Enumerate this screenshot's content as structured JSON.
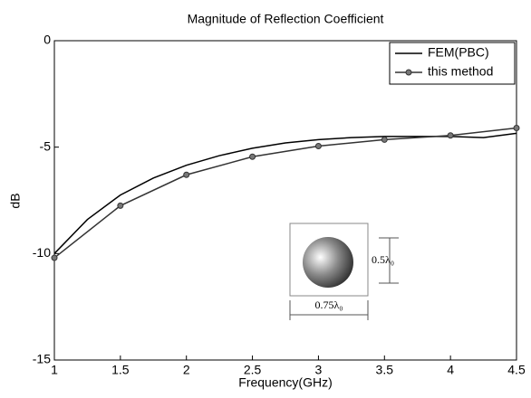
{
  "chart_data": {
    "type": "line",
    "title": "Magnitude of Reflection Coefficient",
    "x_label": "Frequency(GHz)",
    "y_label": "dB",
    "series": [
      {
        "name": "FEM(PBC)",
        "color": "#000000",
        "marker": false,
        "x": [
          1,
          1.25,
          1.5,
          1.75,
          2,
          2.25,
          2.5,
          2.75,
          3,
          3.25,
          3.5,
          3.75,
          4,
          4.25,
          4.5
        ],
        "values": [
          -10.0,
          -8.4,
          -7.25,
          -6.45,
          -5.85,
          -5.4,
          -5.05,
          -4.8,
          -4.65,
          -4.55,
          -4.5,
          -4.5,
          -4.5,
          -4.55,
          -4.35
        ]
      },
      {
        "name": "this method",
        "color": "#333333",
        "marker": true,
        "x": [
          1,
          1.5,
          2,
          2.5,
          3,
          3.5,
          4,
          4.5
        ],
        "values": [
          -10.2,
          -7.75,
          -6.3,
          -5.45,
          -4.95,
          -4.65,
          -4.45,
          -4.1
        ]
      }
    ],
    "xlim": [
      1,
      4.5
    ],
    "xticks": [
      1,
      1.5,
      2,
      2.5,
      3,
      3.5,
      4,
      4.5
    ],
    "ylim": [
      -15,
      0
    ],
    "yticks": [
      -15,
      -10,
      -5,
      0
    ],
    "grid": false,
    "legend": "top-right",
    "annotations": [
      "0.5λ₀",
      "0.75λ₀"
    ]
  }
}
